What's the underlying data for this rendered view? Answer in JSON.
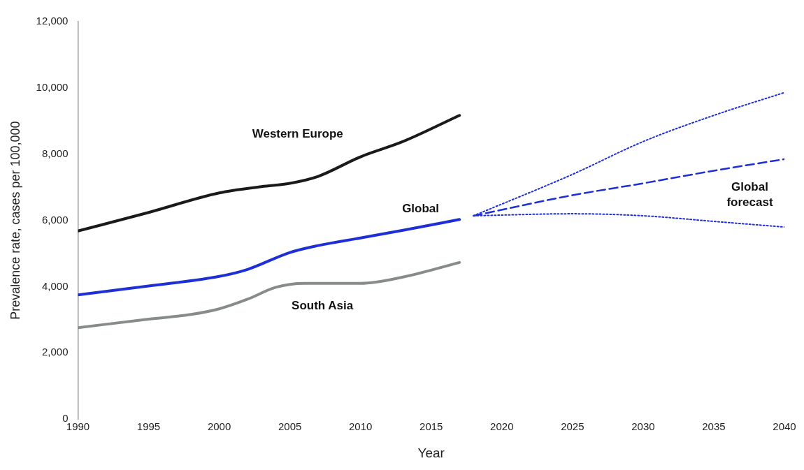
{
  "chart_data": {
    "type": "line",
    "xlabel": "Year",
    "ylabel": "Prevalence rate, cases per 100,000",
    "xlim": [
      1990,
      2040
    ],
    "xticks": [
      1990,
      1995,
      2000,
      2005,
      2010,
      2015,
      2020,
      2025,
      2030,
      2035,
      2040
    ],
    "ylim": [
      0,
      12000
    ],
    "yticks": [
      0,
      {
        "value": 2000,
        "label": "2,000"
      },
      {
        "value": 4000,
        "label": "4,000"
      },
      {
        "value": 6000,
        "label": "6,000"
      },
      {
        "value": 8000,
        "label": "8,000"
      },
      {
        "value": 10000,
        "label": "10,000"
      },
      {
        "value": 12000,
        "label": "12,000"
      }
    ],
    "grid": false,
    "legend": false,
    "marker": "none",
    "series": [
      {
        "name": "Western Europe",
        "color": "#1a1a1a",
        "line_style": "solid",
        "x": [
          1990,
          1995,
          2000,
          2003,
          2005,
          2007,
          2010,
          2013,
          2017
        ],
        "values": [
          5680,
          6240,
          6830,
          7020,
          7120,
          7330,
          7920,
          8380,
          9170
        ]
      },
      {
        "name": "Global",
        "color": "#1f2fd6",
        "line_style": "solid",
        "x": [
          1990,
          1995,
          2000,
          2002,
          2005,
          2007,
          2010,
          2013,
          2017
        ],
        "values": [
          3750,
          4020,
          4310,
          4520,
          5030,
          5240,
          5470,
          5700,
          6030
        ]
      },
      {
        "name": "South Asia",
        "color": "#878c8a",
        "line_style": "solid",
        "x": [
          1990,
          1995,
          1998,
          2000,
          2002,
          2004,
          2006,
          2010,
          2013,
          2017
        ],
        "values": [
          2760,
          3020,
          3160,
          3330,
          3620,
          3980,
          4100,
          4100,
          4290,
          4730
        ]
      },
      {
        "name": "Global\nforecast",
        "color": "#1f2fd6",
        "line_style": "dashed",
        "x": [
          2018,
          2025,
          2030,
          2035,
          2040
        ],
        "values": [
          6140,
          6760,
          7120,
          7500,
          7850
        ]
      },
      {
        "color": "#1f2fd6",
        "line_style": "dotted",
        "x": [
          2018,
          2025,
          2030,
          2035,
          2040
        ],
        "values": [
          6140,
          7390,
          8380,
          9170,
          9860
        ]
      },
      {
        "color": "#1f2fd6",
        "line_style": "dotted",
        "x": [
          2018,
          2025,
          2030,
          2035,
          2040
        ],
        "values": [
          6140,
          6200,
          6140,
          5970,
          5800
        ]
      }
    ]
  }
}
